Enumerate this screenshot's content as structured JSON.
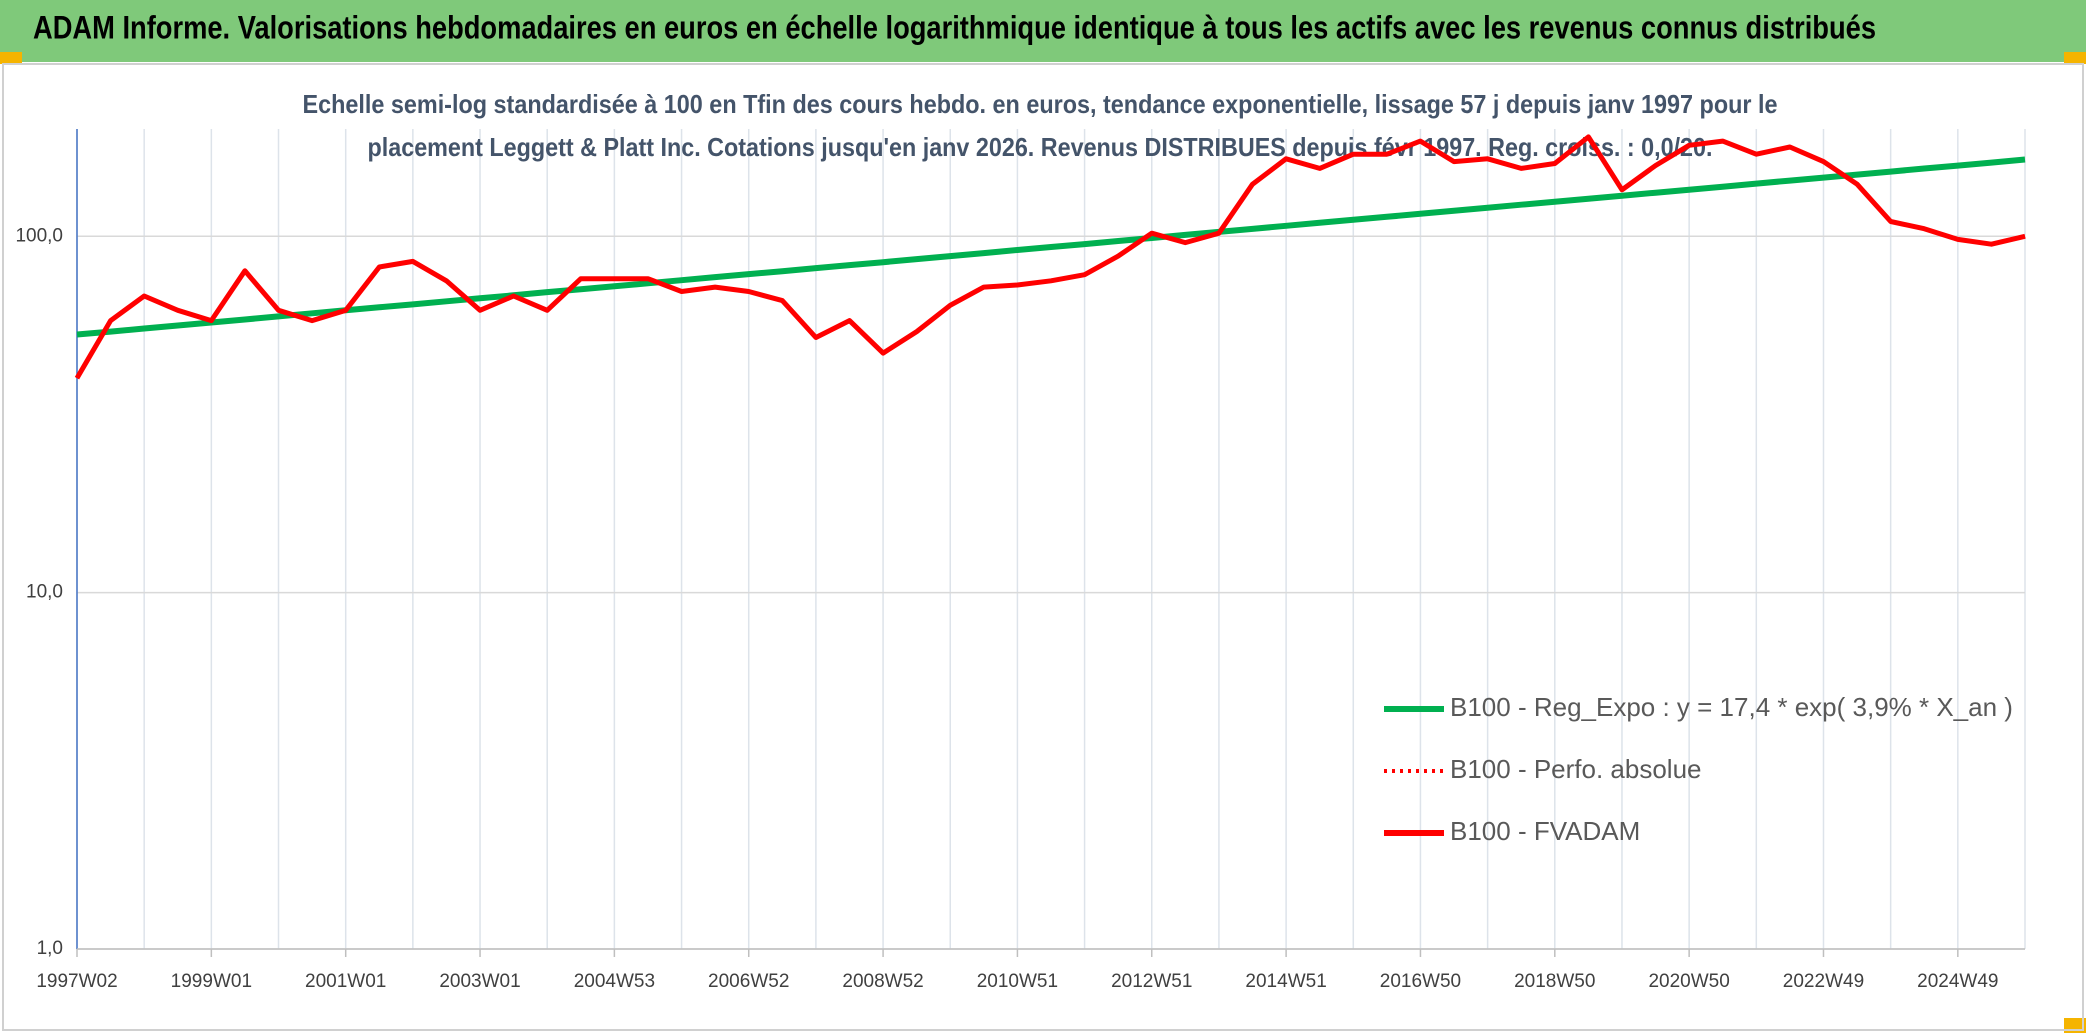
{
  "header": {
    "title": "ADAM Informe. Valorisations hebdomadaires en euros en échelle logarithmique identique à tous les actifs avec les revenus connus distribués"
  },
  "chart_data": {
    "type": "line",
    "title": [
      "Echelle semi-log standardisée à 100 en Tfin des cours hebdo. en euros, tendance exponentielle, lissage 57 j depuis janv 1997 pour le",
      "placement Leggett & Platt Inc. Cotations jusqu'en janv 2026. Revenus DISTRIBUES depuis févr 1997. Reg. croiss. : 0,0/20."
    ],
    "categories": [
      "1997W02",
      null,
      null,
      null,
      "1999W01",
      null,
      null,
      null,
      "2001W01",
      null,
      null,
      null,
      "2003W01",
      null,
      null,
      null,
      "2004W53",
      null,
      null,
      null,
      "2006W52",
      null,
      null,
      null,
      "2008W52",
      null,
      null,
      null,
      "2010W51",
      null,
      null,
      null,
      "2012W51",
      null,
      null,
      null,
      "2014W51",
      null,
      null,
      null,
      "2016W50",
      null,
      null,
      null,
      "2018W50",
      null,
      null,
      null,
      "2020W50",
      null,
      null,
      null,
      "2022W49",
      null,
      null,
      null,
      "2024W49",
      null,
      null
    ],
    "log_y": true,
    "grid": true,
    "legend_position": "lower right",
    "ylim": [
      1,
      200
    ],
    "yticks": [
      {
        "value": 1,
        "label": "1,0"
      },
      {
        "value": 10,
        "label": "10,0"
      },
      {
        "value": 100,
        "label": "100,0"
      }
    ],
    "series": [
      {
        "name": "B100 - Reg_Expo : y = 17,4 * exp( 3,9% *  X_an )",
        "color": "#00b050",
        "dash": "solid",
        "values": [
          53.0,
          54.0,
          55.1,
          56.2,
          57.3,
          58.4,
          59.6,
          60.8,
          62.0,
          63.2,
          64.4,
          65.7,
          67.0,
          68.3,
          69.7,
          71.0,
          72.4,
          73.8,
          75.3,
          76.8,
          78.3,
          79.8,
          81.4,
          83.0,
          84.6,
          86.3,
          88.0,
          89.7,
          91.5,
          93.3,
          95.1,
          97.0,
          98.9,
          100.9,
          102.9,
          104.9,
          107.0,
          109.1,
          111.2,
          113.4,
          115.6,
          117.9,
          120.2,
          122.6,
          125.0,
          127.5,
          130.0,
          132.5,
          135.1,
          137.8,
          140.5,
          143.3,
          146.1,
          149.0,
          151.9,
          154.9,
          157.9,
          161.0,
          164.2
        ]
      },
      {
        "name": "B100 - Perfo. absolue",
        "color": "#ff0000",
        "dash": "dotted",
        "values": [
          40,
          58,
          68,
          62,
          58,
          80,
          62,
          58,
          62,
          82,
          85,
          75,
          62,
          68,
          62,
          76,
          76,
          76,
          70,
          72,
          70,
          66,
          52,
          58,
          47,
          54,
          64,
          72,
          73,
          75,
          78,
          88,
          102,
          96,
          102,
          140,
          165,
          155,
          170,
          170,
          185,
          162,
          165,
          155,
          160,
          190,
          135,
          158,
          180,
          185,
          170,
          178,
          162,
          140,
          110,
          105,
          98,
          95,
          100
        ]
      },
      {
        "name": "B100 - FVADAM",
        "color": "#ff0000",
        "dash": "solid",
        "values": [
          40,
          58,
          68,
          62,
          58,
          80,
          62,
          58,
          62,
          82,
          85,
          75,
          62,
          68,
          62,
          76,
          76,
          76,
          70,
          72,
          70,
          66,
          52,
          58,
          47,
          54,
          64,
          72,
          73,
          75,
          78,
          88,
          102,
          96,
          102,
          140,
          165,
          155,
          170,
          170,
          185,
          162,
          165,
          155,
          160,
          190,
          135,
          158,
          180,
          185,
          170,
          178,
          162,
          140,
          110,
          105,
          98,
          95,
          100
        ]
      }
    ]
  }
}
